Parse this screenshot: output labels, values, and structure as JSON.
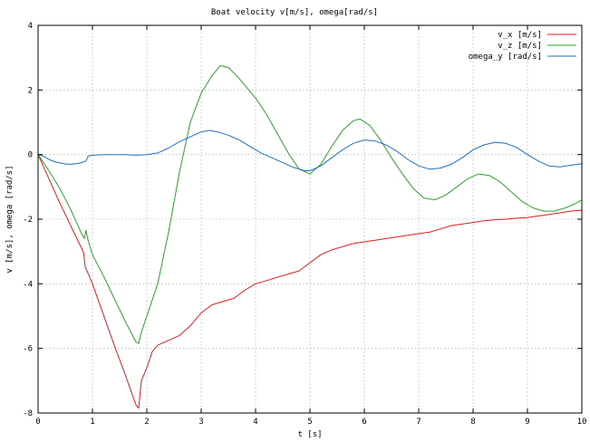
{
  "chart_data": {
    "type": "line",
    "title": "Boat velocity v[m/s], omega[rad/s]",
    "xlabel": "t [s]",
    "ylabel": "v [m/s], omega [rad/s]",
    "xlim": [
      0,
      10
    ],
    "ylim": [
      -8,
      4
    ],
    "xticks": [
      0,
      1,
      2,
      3,
      4,
      5,
      6,
      7,
      8,
      9,
      10
    ],
    "yticks": [
      -8,
      -6,
      -4,
      -2,
      0,
      2,
      4
    ],
    "grid": true,
    "legend": "top-right",
    "series": [
      {
        "name": "v_x [m/s]",
        "color": "#e31a1c",
        "x": [
          0,
          0.2,
          0.4,
          0.6,
          0.8,
          0.84,
          0.87,
          0.9,
          1.0,
          1.2,
          1.4,
          1.6,
          1.8,
          1.85,
          1.9,
          2.0,
          2.1,
          2.2,
          2.4,
          2.6,
          2.8,
          3.0,
          3.2,
          3.4,
          3.6,
          3.8,
          4.0,
          4.2,
          4.4,
          4.6,
          4.8,
          5.0,
          5.2,
          5.4,
          5.6,
          5.8,
          6.0,
          6.2,
          6.4,
          6.6,
          6.8,
          7.0,
          7.2,
          7.4,
          7.6,
          7.8,
          8.0,
          8.2,
          8.4,
          8.6,
          8.8,
          9.0,
          9.2,
          9.4,
          9.6,
          9.8,
          10.0
        ],
        "y": [
          0,
          -0.75,
          -1.5,
          -2.2,
          -2.9,
          -3.05,
          -3.5,
          -3.6,
          -4.0,
          -4.95,
          -5.9,
          -6.8,
          -7.75,
          -7.85,
          -7.0,
          -6.6,
          -6.1,
          -5.9,
          -5.75,
          -5.6,
          -5.3,
          -4.9,
          -4.65,
          -4.55,
          -4.45,
          -4.2,
          -4.0,
          -3.9,
          -3.8,
          -3.7,
          -3.6,
          -3.35,
          -3.1,
          -2.95,
          -2.85,
          -2.75,
          -2.7,
          -2.65,
          -2.6,
          -2.55,
          -2.5,
          -2.45,
          -2.4,
          -2.3,
          -2.2,
          -2.15,
          -2.1,
          -2.05,
          -2.02,
          -2.0,
          -1.97,
          -1.95,
          -1.9,
          -1.85,
          -1.8,
          -1.75,
          -1.72
        ]
      },
      {
        "name": "v_z [m/s]",
        "color": "#2ca02c",
        "x": [
          0,
          0.2,
          0.4,
          0.6,
          0.8,
          0.85,
          0.88,
          0.92,
          1.0,
          1.2,
          1.4,
          1.6,
          1.8,
          1.85,
          1.9,
          2.0,
          2.2,
          2.4,
          2.6,
          2.8,
          3.0,
          3.2,
          3.35,
          3.5,
          3.7,
          4.0,
          4.2,
          4.4,
          4.6,
          4.8,
          5.0,
          5.2,
          5.4,
          5.6,
          5.8,
          5.92,
          6.1,
          6.3,
          6.5,
          6.7,
          6.9,
          7.1,
          7.3,
          7.5,
          7.7,
          7.9,
          8.1,
          8.3,
          8.5,
          8.7,
          8.9,
          9.1,
          9.3,
          9.5,
          9.7,
          9.9,
          10.0
        ],
        "y": [
          0,
          -0.5,
          -1.05,
          -1.7,
          -2.45,
          -2.6,
          -2.35,
          -2.65,
          -3.1,
          -3.75,
          -4.45,
          -5.15,
          -5.8,
          -5.85,
          -5.5,
          -5.0,
          -4.0,
          -2.4,
          -0.55,
          1.0,
          1.9,
          2.45,
          2.75,
          2.7,
          2.35,
          1.75,
          1.25,
          0.65,
          0.05,
          -0.45,
          -0.6,
          -0.3,
          0.25,
          0.75,
          1.05,
          1.1,
          0.9,
          0.45,
          -0.1,
          -0.6,
          -1.05,
          -1.35,
          -1.4,
          -1.25,
          -1.0,
          -0.75,
          -0.6,
          -0.65,
          -0.85,
          -1.15,
          -1.45,
          -1.65,
          -1.75,
          -1.75,
          -1.65,
          -1.5,
          -1.4
        ]
      },
      {
        "name": "omega_y [rad/s]",
        "color": "#1f6fbf",
        "x": [
          0,
          0.1,
          0.2,
          0.3,
          0.4,
          0.5,
          0.6,
          0.7,
          0.8,
          0.88,
          0.92,
          1.0,
          1.2,
          1.4,
          1.6,
          1.8,
          2.0,
          2.2,
          2.4,
          2.6,
          2.8,
          3.0,
          3.15,
          3.3,
          3.5,
          3.7,
          3.9,
          4.1,
          4.3,
          4.5,
          4.7,
          4.9,
          5.0,
          5.2,
          5.4,
          5.6,
          5.8,
          6.0,
          6.2,
          6.4,
          6.6,
          6.8,
          7.0,
          7.2,
          7.4,
          7.6,
          7.8,
          8.0,
          8.2,
          8.4,
          8.6,
          8.8,
          9.0,
          9.2,
          9.4,
          9.6,
          9.8,
          10.0
        ],
        "y": [
          0,
          -0.05,
          -0.15,
          -0.22,
          -0.26,
          -0.29,
          -0.3,
          -0.28,
          -0.25,
          -0.2,
          -0.05,
          -0.02,
          0,
          0,
          0,
          -0.02,
          0,
          0.05,
          0.2,
          0.4,
          0.55,
          0.7,
          0.75,
          0.7,
          0.6,
          0.45,
          0.25,
          0.05,
          -0.1,
          -0.25,
          -0.4,
          -0.5,
          -0.5,
          -0.35,
          -0.1,
          0.15,
          0.35,
          0.45,
          0.42,
          0.3,
          0.1,
          -0.15,
          -0.35,
          -0.45,
          -0.42,
          -0.3,
          -0.1,
          0.15,
          0.3,
          0.38,
          0.35,
          0.22,
          0.0,
          -0.2,
          -0.35,
          -0.38,
          -0.33,
          -0.28
        ]
      }
    ]
  }
}
